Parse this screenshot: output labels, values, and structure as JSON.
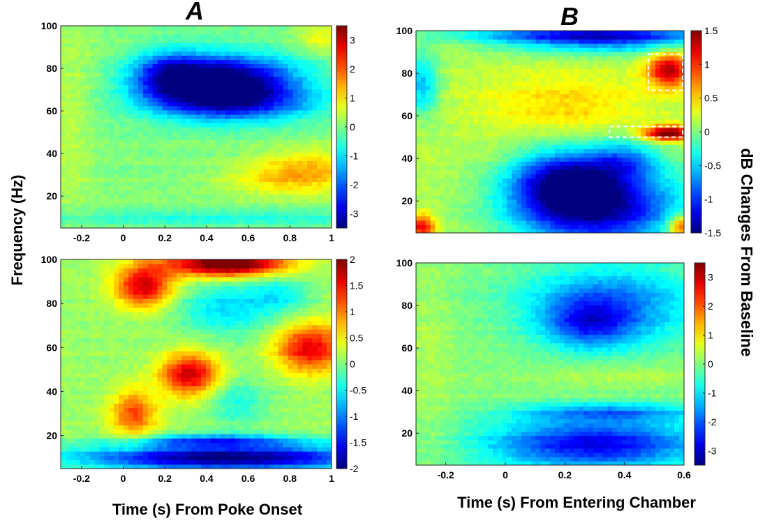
{
  "figure": {
    "panel_labels": [
      "A",
      "B"
    ],
    "ylabel": "Frequency (Hz)",
    "xlabel_left": "Time (s) From Poke Onset",
    "xlabel_right": "Time (s) From Entering Chamber",
    "colorbar_label": "dB Changes From Baseline"
  },
  "colormap": "jet",
  "chart_data": [
    {
      "panel": "A-top",
      "type": "heatmap",
      "xlim": [
        -0.3,
        1.0
      ],
      "ylim": [
        5,
        100
      ],
      "xticks": [
        "-0.2",
        "0",
        "0.2",
        "0.4",
        "0.6",
        "0.8",
        "1"
      ],
      "yticks": [
        "20",
        "40",
        "60",
        "80",
        "100"
      ],
      "clim": [
        -3.5,
        3.5
      ],
      "colorbar_ticks": [
        "3",
        "2",
        "1",
        "0",
        "-1",
        "-2",
        "-3"
      ],
      "grid": false,
      "baseline": 0.0,
      "blobs": [
        {
          "t": 0.48,
          "f": 73,
          "st": 0.24,
          "sf": 9,
          "v": -4.2
        },
        {
          "t": 0.22,
          "f": 77,
          "st": 0.12,
          "sf": 8,
          "v": -1.8
        },
        {
          "t": 0.55,
          "f": 63,
          "st": 0.3,
          "sf": 6,
          "v": -1.3
        },
        {
          "t": 0.92,
          "f": 33,
          "st": 0.2,
          "sf": 7,
          "v": 1.1
        },
        {
          "t": 0.75,
          "f": 28,
          "st": 0.2,
          "sf": 6,
          "v": 0.7
        },
        {
          "t": 0.5,
          "f": 10,
          "st": 0.8,
          "sf": 3,
          "v": -0.6
        },
        {
          "t": -0.25,
          "f": 60,
          "st": 0.08,
          "sf": 40,
          "v": 0.4
        },
        {
          "t": 0.95,
          "f": 95,
          "st": 0.08,
          "sf": 5,
          "v": 0.8
        }
      ]
    },
    {
      "panel": "B-top",
      "type": "heatmap",
      "xlim": [
        -0.3,
        0.6
      ],
      "ylim": [
        5,
        100
      ],
      "xticks": [],
      "yticks": [
        "20",
        "40",
        "60",
        "80",
        "100"
      ],
      "clim": [
        -1.5,
        1.5
      ],
      "colorbar_ticks": [
        "1.5",
        "1",
        "0.5",
        "0",
        "-0.5",
        "-1",
        "-1.5"
      ],
      "grid": false,
      "baseline": 0.15,
      "blobs": [
        {
          "t": 0.55,
          "f": 52,
          "st": 0.06,
          "sf": 2.5,
          "v": 1.5
        },
        {
          "t": 0.55,
          "f": 82,
          "st": 0.05,
          "sf": 6,
          "v": 1.2
        },
        {
          "t": 0.2,
          "f": 65,
          "st": 0.2,
          "sf": 10,
          "v": 0.35
        },
        {
          "t": 0.3,
          "f": 18,
          "st": 0.2,
          "sf": 14,
          "v": -1.6
        },
        {
          "t": 0.2,
          "f": 30,
          "st": 0.12,
          "sf": 10,
          "v": -1.0
        },
        {
          "t": 0.4,
          "f": 40,
          "st": 0.08,
          "sf": 6,
          "v": -0.6
        },
        {
          "t": 0.3,
          "f": 98,
          "st": 0.28,
          "sf": 3,
          "v": -1.4
        },
        {
          "t": 0.35,
          "f": 92,
          "st": 0.25,
          "sf": 3,
          "v": -0.5
        },
        {
          "t": -0.28,
          "f": 75,
          "st": 0.04,
          "sf": 10,
          "v": -0.7
        },
        {
          "t": -0.28,
          "f": 8,
          "st": 0.03,
          "sf": 4,
          "v": 1.0
        },
        {
          "t": 0.59,
          "f": 8,
          "st": 0.03,
          "sf": 4,
          "v": 1.0
        }
      ],
      "highlight_boxes": [
        {
          "t0": 0.48,
          "t1": 0.6,
          "f0": 72,
          "f1": 89
        },
        {
          "t0": 0.35,
          "t1": 0.6,
          "f0": 50,
          "f1": 55
        }
      ]
    },
    {
      "panel": "A-bottom",
      "type": "heatmap",
      "xlim": [
        -0.3,
        1.0
      ],
      "ylim": [
        5,
        100
      ],
      "xticks": [
        "-0.2",
        "0",
        "0.2",
        "0.4",
        "0.6",
        "0.8",
        "1"
      ],
      "yticks": [
        "20",
        "40",
        "60",
        "80",
        "100"
      ],
      "clim": [
        -2,
        2
      ],
      "colorbar_ticks": [
        "2",
        "1.5",
        "1",
        "0.5",
        "0",
        "-0.5",
        "-1",
        "-1.5",
        "-2"
      ],
      "grid": false,
      "baseline": 0.1,
      "blobs": [
        {
          "t": 0.5,
          "f": 98,
          "st": 0.2,
          "sf": 4,
          "v": 2.3
        },
        {
          "t": 0.1,
          "f": 88,
          "st": 0.1,
          "sf": 7,
          "v": 1.6
        },
        {
          "t": 0.32,
          "f": 48,
          "st": 0.1,
          "sf": 7,
          "v": 1.6
        },
        {
          "t": 0.05,
          "f": 30,
          "st": 0.08,
          "sf": 8,
          "v": 1.1
        },
        {
          "t": 0.9,
          "f": 60,
          "st": 0.12,
          "sf": 8,
          "v": 1.5
        },
        {
          "t": 0.5,
          "f": 10,
          "st": 0.5,
          "sf": 4,
          "v": -2.2
        },
        {
          "t": 0.45,
          "f": 18,
          "st": 0.3,
          "sf": 2,
          "v": -1.2
        },
        {
          "t": 0.5,
          "f": 78,
          "st": 0.18,
          "sf": 9,
          "v": -0.7
        },
        {
          "t": 0.55,
          "f": 35,
          "st": 0.1,
          "sf": 8,
          "v": -0.5
        },
        {
          "t": 0.75,
          "f": 85,
          "st": 0.1,
          "sf": 6,
          "v": -0.5
        }
      ]
    },
    {
      "panel": "B-bottom",
      "type": "heatmap",
      "xlim": [
        -0.3,
        0.6
      ],
      "ylim": [
        5,
        100
      ],
      "xticks": [
        "-0.2",
        "0",
        "0.2",
        "0.4",
        "0.6"
      ],
      "yticks": [
        "20",
        "40",
        "60",
        "80",
        "100"
      ],
      "clim": [
        -3.5,
        3.5
      ],
      "colorbar_ticks": [
        "3",
        "2",
        "1",
        "0",
        "-1",
        "-2",
        "-3"
      ],
      "grid": false,
      "baseline": 0.0,
      "blobs": [
        {
          "t": 0.35,
          "f": 80,
          "st": 0.2,
          "sf": 14,
          "v": -1.8
        },
        {
          "t": 0.28,
          "f": 72,
          "st": 0.1,
          "sf": 8,
          "v": -1.5
        },
        {
          "t": 0.3,
          "f": 15,
          "st": 0.25,
          "sf": 8,
          "v": -2.8
        },
        {
          "t": 0.35,
          "f": 30,
          "st": 0.22,
          "sf": 3,
          "v": -1.5
        },
        {
          "t": 0.4,
          "f": 48,
          "st": 0.25,
          "sf": 5,
          "v": 0.4
        },
        {
          "t": -0.25,
          "f": 55,
          "st": 0.06,
          "sf": 40,
          "v": 0.3
        }
      ]
    }
  ]
}
